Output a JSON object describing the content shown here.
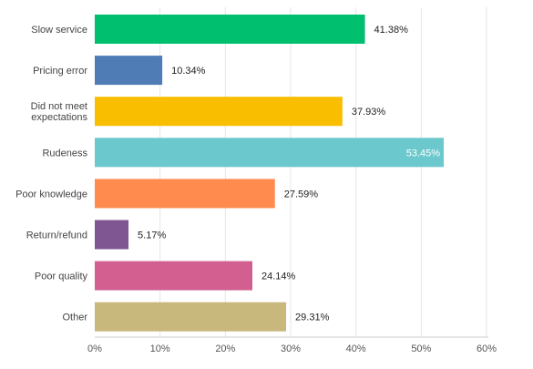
{
  "chart_data": {
    "type": "bar",
    "orientation": "horizontal",
    "categories": [
      [
        "Slow service"
      ],
      [
        "Pricing error"
      ],
      [
        "Did not meet",
        "expectations"
      ],
      [
        "Rudeness"
      ],
      [
        "Poor knowledge"
      ],
      [
        "Return/refund"
      ],
      [
        "Poor quality"
      ],
      [
        "Other"
      ]
    ],
    "values": [
      41.38,
      10.34,
      37.93,
      53.45,
      27.59,
      5.17,
      24.14,
      29.31
    ],
    "value_labels": [
      "41.38%",
      "10.34%",
      "37.93%",
      "53.45%",
      "27.59%",
      "5.17%",
      "24.14%",
      "29.31%"
    ],
    "colors": [
      "#00bf6f",
      "#507cb6",
      "#f9be00",
      "#6bc8cd",
      "#ff8b4f",
      "#7f5691",
      "#d25f90",
      "#c9b87c"
    ],
    "xlim": [
      0,
      60
    ],
    "ticks": [
      0,
      10,
      20,
      30,
      40,
      50,
      60
    ],
    "tick_labels": [
      "0%",
      "10%",
      "20%",
      "30%",
      "40%",
      "50%",
      "60%"
    ],
    "grid": true,
    "title": "",
    "xlabel": "",
    "ylabel": ""
  }
}
